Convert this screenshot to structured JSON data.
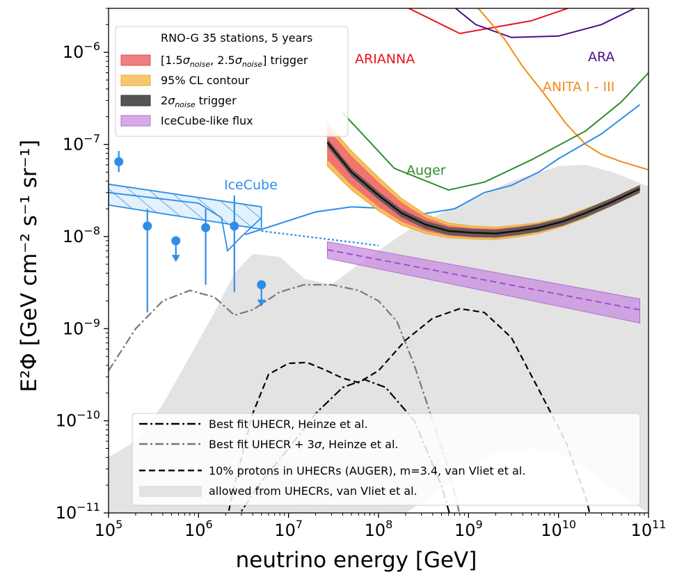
{
  "chart_data": {
    "type": "line",
    "scale": {
      "x": "log",
      "y": "log"
    },
    "xlabel": "neutrino energy [GeV]",
    "ylabel": "E²Φ [GeV cm⁻² s⁻¹ sr⁻¹]",
    "xlim": [
      100000.0,
      100000000000.0
    ],
    "ylim": [
      1e-11,
      3e-06
    ],
    "x_ticks": [
      {
        "value": 100000.0,
        "base": "10",
        "exp": "5"
      },
      {
        "value": 1000000.0,
        "base": "10",
        "exp": "6"
      },
      {
        "value": 10000000.0,
        "base": "10",
        "exp": "7"
      },
      {
        "value": 100000000.0,
        "base": "10",
        "exp": "8"
      },
      {
        "value": 1000000000.0,
        "base": "10",
        "exp": "9"
      },
      {
        "value": 10000000000.0,
        "base": "10",
        "exp": "10"
      },
      {
        "value": 100000000000.0,
        "base": "10",
        "exp": "11"
      }
    ],
    "y_ticks": [
      {
        "value": 1e-11,
        "base": "10",
        "exp": "−11"
      },
      {
        "value": 1e-10,
        "base": "10",
        "exp": "−10"
      },
      {
        "value": 1e-09,
        "base": "10",
        "exp": "−9"
      },
      {
        "value": 1e-08,
        "base": "10",
        "exp": "−8"
      },
      {
        "value": 1e-07,
        "base": "10",
        "exp": "−7"
      },
      {
        "value": 1e-06,
        "base": "10",
        "exp": "−6"
      }
    ],
    "colors": {
      "arianna": "#e8141b",
      "ara": "#4b0c8c",
      "anita": "#f28c14",
      "auger": "#2e8b2e",
      "icecube": "#2e8de8",
      "rno_band": "#f07070",
      "rno_contour": "#f5b94a",
      "rno_line": "#111111",
      "icecube_like": "#c88de0",
      "uhecr_allowed": "#e3e3e3"
    },
    "series": [
      {
        "name": "ARIANNA",
        "label": "ARIANNA",
        "points": [
          [
            120000000.0,
            4e-06
          ],
          [
            800000000.0,
            1.6e-06
          ],
          [
            5000000000.0,
            2.2e-06
          ],
          [
            30000000000.0,
            4e-06
          ]
        ]
      },
      {
        "name": "ARA",
        "label": "ARA",
        "points": [
          [
            500000000.0,
            4e-06
          ],
          [
            1200000000.0,
            2e-06
          ],
          [
            3000000000.0,
            1.45e-06
          ],
          [
            10000000000.0,
            1.5e-06
          ],
          [
            30000000000.0,
            2e-06
          ],
          [
            70000000000.0,
            3e-06
          ]
        ]
      },
      {
        "name": "ANITA",
        "label": "ANITA I - III",
        "points": [
          [
            1000000000.0,
            4e-06
          ],
          [
            2500000000.0,
            1.4e-06
          ],
          [
            4000000000.0,
            7e-07
          ],
          [
            7000000000.0,
            3.5e-07
          ],
          [
            12000000000.0,
            1.7e-07
          ],
          [
            20000000000.0,
            1e-07
          ],
          [
            30000000000.0,
            7.8e-08
          ],
          [
            50000000000.0,
            6.5e-08
          ],
          [
            100000000000.0,
            5.3e-08
          ]
        ]
      },
      {
        "name": "Auger",
        "label": "Auger",
        "points": [
          [
            40000000.0,
            2.2e-07
          ],
          [
            150000000.0,
            5.5e-08
          ],
          [
            600000000.0,
            3.2e-08
          ],
          [
            1500000000.0,
            3.9e-08
          ],
          [
            5000000000.0,
            6.8e-08
          ],
          [
            20000000000.0,
            1.4e-07
          ],
          [
            50000000000.0,
            2.9e-07
          ],
          [
            100000000000.0,
            6e-07
          ]
        ]
      },
      {
        "name": "IceCube limit",
        "label": "IceCube",
        "points": [
          [
            3300000.0,
            1.05e-08
          ],
          [
            20000000.0,
            1.85e-08
          ],
          [
            50000000.0,
            2.1e-08
          ],
          [
            150000000.0,
            2e-08
          ],
          [
            300000000.0,
            1.75e-08
          ],
          [
            700000000.0,
            2e-08
          ],
          [
            1500000000.0,
            3e-08
          ],
          [
            3000000000.0,
            3.6e-08
          ],
          [
            6000000000.0,
            5e-08
          ],
          [
            10000000000.0,
            7e-08
          ],
          [
            30000000000.0,
            1.3e-07
          ],
          [
            80000000000.0,
            2.7e-07
          ]
        ]
      },
      {
        "name": "IceCube astro extrapolation",
        "points": [
          [
            5000000.0,
            1.15e-08
          ],
          [
            100000000.0,
            8e-09
          ]
        ]
      },
      {
        "name": "RNO-G 2 sigma trigger",
        "legend": "2σnoise trigger",
        "x": [
          27000000.0,
          50000000.0,
          100000000.0,
          180000000.0,
          330000000.0,
          600000000.0,
          1100000000.0,
          2000000000.0,
          3500000000.0,
          6000000000.0,
          11000000000.0,
          20000000000.0,
          40000000000.0,
          80000000000.0
        ],
        "y": [
          1.05e-07,
          5e-08,
          2.8e-08,
          1.8e-08,
          1.35e-08,
          1.15e-08,
          1.1e-08,
          1.08e-08,
          1.15e-08,
          1.25e-08,
          1.45e-08,
          1.8e-08,
          2.4e-08,
          3.3e-08
        ]
      },
      {
        "name": "RNO-G trigger band",
        "legend": "[1.5σnoise, 2.5σnoise] trigger",
        "x": [
          27000000.0,
          50000000.0,
          100000000.0,
          180000000.0,
          330000000.0,
          600000000.0,
          1100000000.0,
          2000000000.0,
          3500000000.0,
          6000000000.0,
          11000000000.0,
          20000000000.0,
          40000000000.0,
          80000000000.0
        ],
        "lower": [
          6.8e-08,
          3.6e-08,
          2.1e-08,
          1.45e-08,
          1.15e-08,
          1.02e-08,
          9.8e-09,
          9.7e-09,
          1.03e-08,
          1.12e-08,
          1.32e-08,
          1.65e-08,
          2.25e-08,
          3.1e-08
        ],
        "upper": [
          1.5e-07,
          7.5e-08,
          3.9e-08,
          2.35e-08,
          1.62e-08,
          1.32e-08,
          1.24e-08,
          1.22e-08,
          1.28e-08,
          1.38e-08,
          1.58e-08,
          1.96e-08,
          2.58e-08,
          3.52e-08
        ]
      },
      {
        "name": "RNO-G 95% CL contour",
        "legend": "95% CL contour",
        "x": [
          27000000.0,
          50000000.0,
          100000000.0,
          180000000.0,
          330000000.0,
          600000000.0,
          1100000000.0,
          2000000000.0,
          3500000000.0,
          6000000000.0,
          11000000000.0,
          20000000000.0,
          40000000000.0,
          80000000000.0
        ],
        "lower": [
          5.8e-08,
          3.2e-08,
          1.9e-08,
          1.33e-08,
          1.08e-08,
          9.7e-09,
          9.4e-09,
          9.3e-09,
          9.9e-09,
          1.08e-08,
          1.28e-08,
          1.6e-08,
          2.2e-08,
          3.05e-08
        ],
        "upper": [
          1.7e-07,
          8.5e-08,
          4.4e-08,
          2.6e-08,
          1.75e-08,
          1.4e-08,
          1.3e-08,
          1.27e-08,
          1.33e-08,
          1.42e-08,
          1.62e-08,
          2e-08,
          2.62e-08,
          3.58e-08
        ]
      },
      {
        "name": "IceCube-like flux",
        "legend": "IceCube-like flux",
        "x": [
          27000000.0,
          80000000000.0
        ],
        "y": [
          7.2e-09,
          1.6e-09
        ],
        "lower": [
          5.8e-09,
          1.15e-09
        ],
        "upper": [
          8.8e-09,
          2.1e-09
        ]
      },
      {
        "name": "Best fit UHECR, Heinze et al.",
        "legend": "Best fit UHECR, Heinze et al.",
        "points": [
          [
            1200000.0,
            2e-12
          ],
          [
            2500000.0,
            8e-12
          ],
          [
            5000000.0,
            2.2e-11
          ],
          [
            10000000.0,
            5e-11
          ],
          [
            20000000.0,
            1.2e-10
          ],
          [
            40000000.0,
            2.3e-10
          ],
          [
            70000000.0,
            2.8e-10
          ],
          [
            120000000.0,
            2.3e-10
          ],
          [
            250000000.0,
            1e-10
          ],
          [
            500000000.0,
            2e-11
          ],
          [
            800000000.0,
            4e-12
          ]
        ]
      },
      {
        "name": "Best fit UHECR + 3 sigma",
        "legend": "Best fit UHECR + 3σ, Heinze et al.",
        "points": [
          [
            100000.0,
            3.5e-10
          ],
          [
            200000.0,
            1e-09
          ],
          [
            400000.0,
            2e-09
          ],
          [
            800000.0,
            2.6e-09
          ],
          [
            1500000.0,
            2.2e-09
          ],
          [
            2500000.0,
            1.4e-09
          ],
          [
            4000000.0,
            1.6e-09
          ],
          [
            8000000.0,
            2.5e-09
          ],
          [
            15000000.0,
            3e-09
          ],
          [
            30000000.0,
            3e-09
          ],
          [
            60000000.0,
            2.6e-09
          ],
          [
            100000000.0,
            2e-09
          ],
          [
            160000000.0,
            1.2e-09
          ],
          [
            250000000.0,
            4e-10
          ],
          [
            400000000.0,
            1e-10
          ],
          [
            600000000.0,
            3e-11
          ],
          [
            900000000.0,
            6e-12
          ]
        ]
      },
      {
        "name": "10% protons in UHECRs (AUGER)",
        "legend": "10% protons in UHECRs (AUGER), m=3.4, van Vliet et al.",
        "points": [
          [
            1500000.0,
            2e-12
          ],
          [
            2500000.0,
            2e-11
          ],
          [
            4000000.0,
            1.2e-10
          ],
          [
            6000000.0,
            3.2e-10
          ],
          [
            10000000.0,
            4.2e-10
          ],
          [
            16000000.0,
            4.3e-10
          ],
          [
            25000000.0,
            3.6e-10
          ],
          [
            40000000.0,
            2.9e-10
          ],
          [
            60000000.0,
            2.6e-10
          ],
          [
            100000000.0,
            3.5e-10
          ],
          [
            200000000.0,
            7.5e-10
          ],
          [
            400000000.0,
            1.3e-09
          ],
          [
            800000000.0,
            1.65e-09
          ],
          [
            1500000000.0,
            1.5e-09
          ],
          [
            3000000000.0,
            8e-10
          ],
          [
            6000000000.0,
            2.2e-10
          ],
          [
            12000000000.0,
            6e-11
          ],
          [
            20000000000.0,
            1.5e-11
          ],
          [
            30000000000.0,
            3e-12
          ]
        ]
      },
      {
        "name": "allowed from UHECRs, van Vliet et al.",
        "legend": "allowed from UHECRs, van Vliet et al.",
        "points": [
          [
            100000.0,
            4e-11
          ],
          [
            200000.0,
            6e-11
          ],
          [
            400000.0,
            1.5e-10
          ],
          [
            800000.0,
            5e-10
          ],
          [
            1500000.0,
            1.5e-09
          ],
          [
            2500000.0,
            4e-09
          ],
          [
            4000000.0,
            6.5e-09
          ],
          [
            8000000.0,
            6e-09
          ],
          [
            15000000.0,
            3.5e-09
          ],
          [
            30000000.0,
            3e-09
          ],
          [
            60000000.0,
            5e-09
          ],
          [
            120000000.0,
            8e-09
          ],
          [
            250000000.0,
            1.3e-08
          ],
          [
            500000000.0,
            1.8e-08
          ],
          [
            1000000000.0,
            2.4e-08
          ],
          [
            3000000000.0,
            4e-08
          ],
          [
            10000000000.0,
            5.8e-08
          ],
          [
            20000000000.0,
            6e-08
          ],
          [
            40000000000.0,
            5e-08
          ],
          [
            100000000000.0,
            3.5e-08
          ],
          [
            100000000000.0,
            1e-11
          ],
          [
            40000000000.0,
            1.8e-11
          ],
          [
            20000000000.0,
            3e-11
          ],
          [
            10000000000.0,
            4.5e-11
          ],
          [
            5000000000.0,
            5e-11
          ],
          [
            2000000000.0,
            4.5e-11
          ],
          [
            1000000000.0,
            3e-11
          ],
          [
            500000000.0,
            1.8e-11
          ],
          [
            200000000.0,
            1e-11
          ],
          [
            100000.0,
            1e-11
          ]
        ]
      }
    ],
    "icecube_points": [
      {
        "x": 130000.0,
        "y": 6.5e-08,
        "lower": 5e-08,
        "upper": 8.5e-08,
        "upper_limit": false
      },
      {
        "x": 270000.0,
        "y": 1.3e-08,
        "lower": 1.5e-09,
        "upper": 2e-08,
        "upper_limit": false
      },
      {
        "x": 560000.0,
        "y": 9e-09,
        "lower": 5.5e-09,
        "upper": 9e-09,
        "upper_limit": true
      },
      {
        "x": 1200000.0,
        "y": 1.25e-08,
        "lower": 3e-09,
        "upper": 2e-08,
        "upper_limit": false
      },
      {
        "x": 2500000.0,
        "y": 1.3e-08,
        "lower": 2.5e-09,
        "upper": 2.8e-08,
        "upper_limit": false
      },
      {
        "x": 5000000.0,
        "y": 3e-09,
        "lower": 1.8e-09,
        "upper": 3e-09,
        "upper_limit": true
      }
    ],
    "icecube_boxes": [
      {
        "x0": 100000.0,
        "x1": 5000000.0,
        "y_top0": 3.7e-08,
        "y_top1": 2.1e-08,
        "y_bot0": 2.2e-08,
        "y_bot1": 1.2e-08
      }
    ],
    "icecube_outer_lower_points": [
      [
        100000.0,
        3e-08
      ],
      [
        1000000.0,
        2.3e-08
      ],
      [
        1800000.0,
        1.6e-08
      ],
      [
        2100000.0,
        7e-09
      ],
      [
        3000000.0,
        1e-08
      ],
      [
        5000000.0,
        1.6e-08
      ]
    ],
    "curve_labels": {
      "arianna": "ARIANNA",
      "ara": "ARA",
      "anita": "ANITA I - III",
      "auger": "Auger",
      "icecube": "IceCube"
    },
    "legend_top": {
      "title": "RNO-G 35 stations, 5 years",
      "items": [
        {
          "pre": "[1.5",
          "sigma1": "σ",
          "sub1": "noise",
          "mid": ", 2.5",
          "sigma2": "σ",
          "sub2": "noise",
          "post": "] trigger"
        },
        {
          "text": "95% CL contour"
        },
        {
          "pre": "2",
          "sigma1": "σ",
          "sub1": "noise",
          "post": " trigger"
        },
        {
          "text": "IceCube-like flux"
        }
      ]
    },
    "legend_bottom": {
      "items": [
        {
          "text": "Best fit UHECR, Heinze et al."
        },
        {
          "pre": "Best fit UHECR + 3",
          "sigma": "σ",
          "post": ", Heinze et al."
        },
        {
          "text": "10% protons in UHECRs (AUGER), m=3.4, van Vliet et al."
        },
        {
          "text": "allowed from UHECRs, van Vliet et al."
        }
      ]
    }
  }
}
